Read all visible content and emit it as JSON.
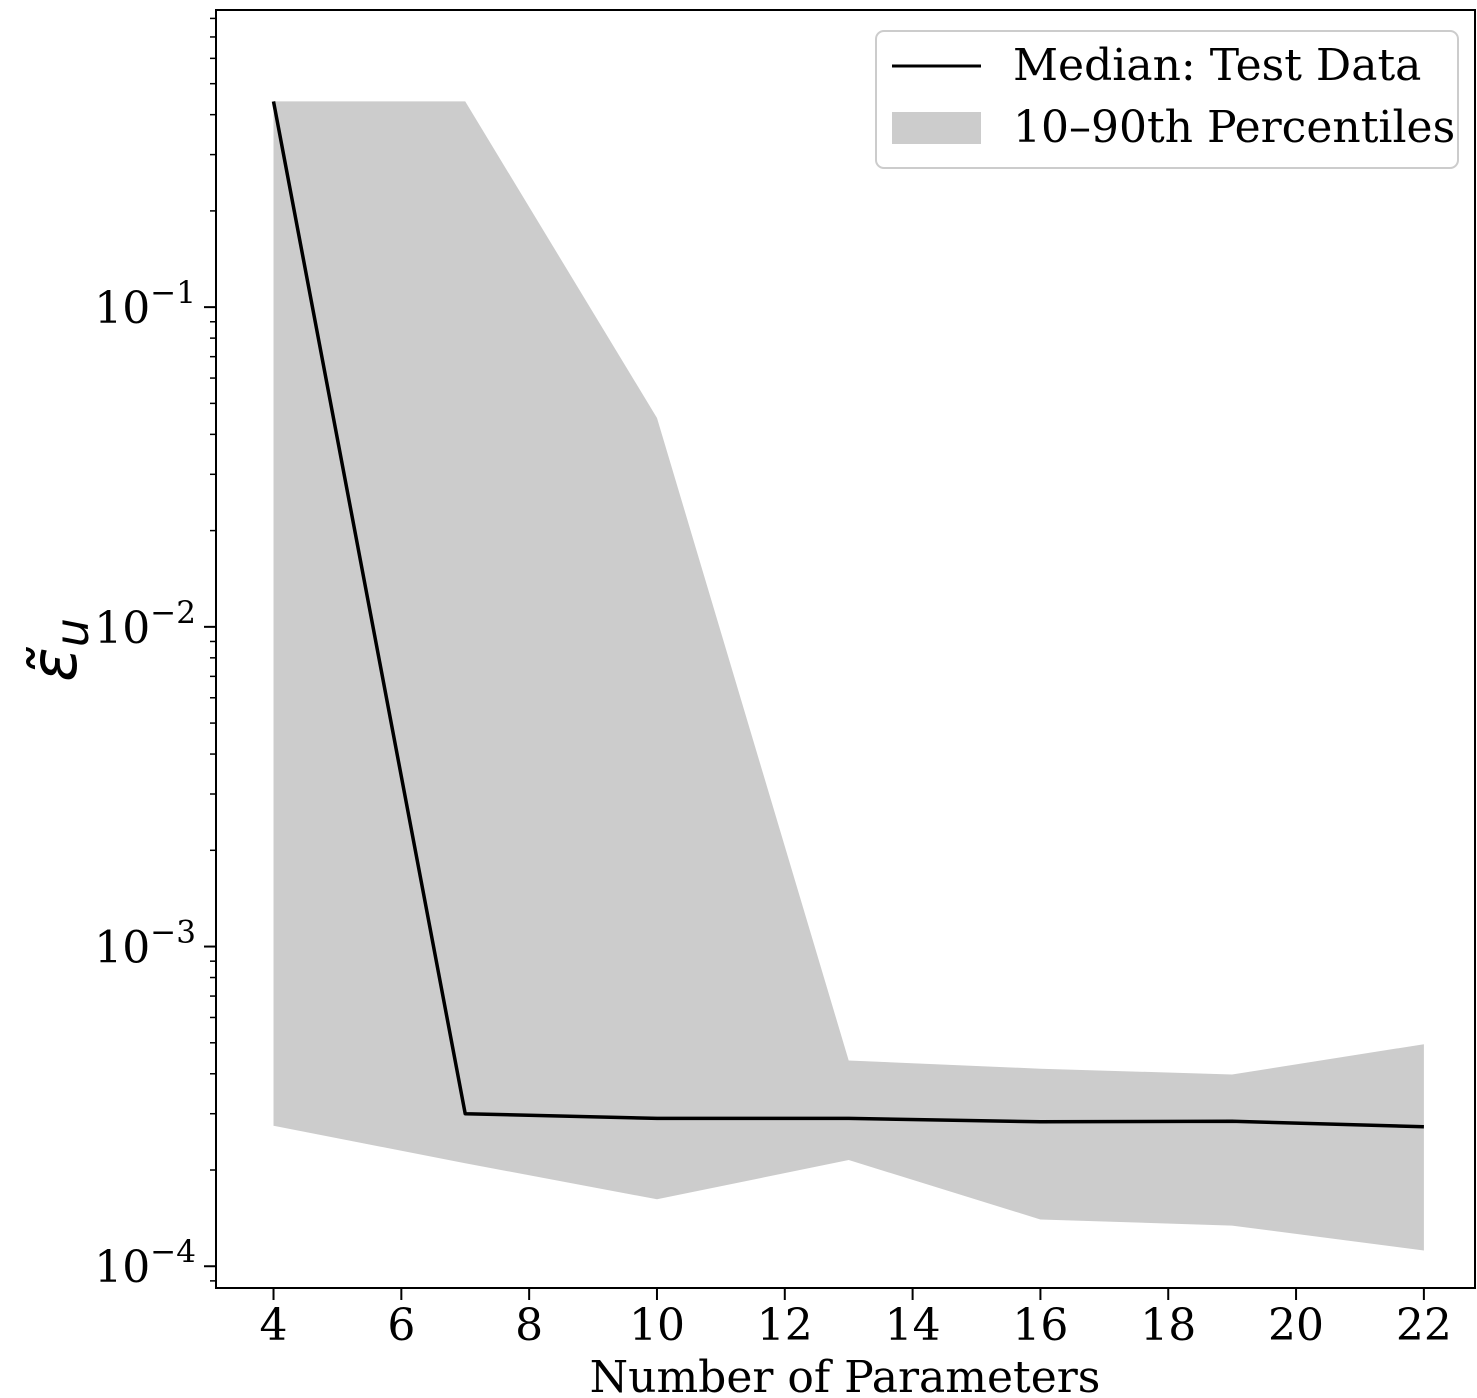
{
  "chart_data": {
    "type": "line",
    "xlabel": "Number of Parameters",
    "ylabel_symbol": "ε̃",
    "ylabel_subscript": "u",
    "yscale": "log",
    "xlim": [
      3.1,
      22.8
    ],
    "ylim": [
      8.55e-05,
      0.85
    ],
    "x_ticks": [
      4,
      6,
      8,
      10,
      12,
      14,
      16,
      18,
      20,
      22
    ],
    "x_tick_labels": [
      "4",
      "6",
      "8",
      "10",
      "12",
      "14",
      "16",
      "18",
      "20",
      "22"
    ],
    "y_ticks": [
      {
        "value": 0.1,
        "base": "10",
        "exp": "−1"
      },
      {
        "value": 0.01,
        "base": "10",
        "exp": "−2"
      },
      {
        "value": 0.001,
        "base": "10",
        "exp": "−3"
      },
      {
        "value": 0.0001,
        "base": "10",
        "exp": "−4"
      }
    ],
    "x": [
      4,
      7,
      10,
      13,
      16,
      19,
      22
    ],
    "series": [
      {
        "name": "Median: Test Data",
        "kind": "line",
        "color": "#000000",
        "values": [
          0.44,
          0.0003,
          0.00029,
          0.00029,
          0.000283,
          0.000284,
          0.000273
        ]
      },
      {
        "name": "10–90th Percentiles",
        "kind": "band",
        "color": "#cccccc",
        "lower": [
          0.000275,
          0.00021,
          0.000162,
          0.000215,
          0.00014,
          0.000134,
          0.000112
        ],
        "upper": [
          0.44,
          0.44,
          0.045,
          0.00044,
          0.000415,
          0.000398,
          0.000495
        ]
      }
    ],
    "grid": false,
    "legend": "top-right"
  }
}
